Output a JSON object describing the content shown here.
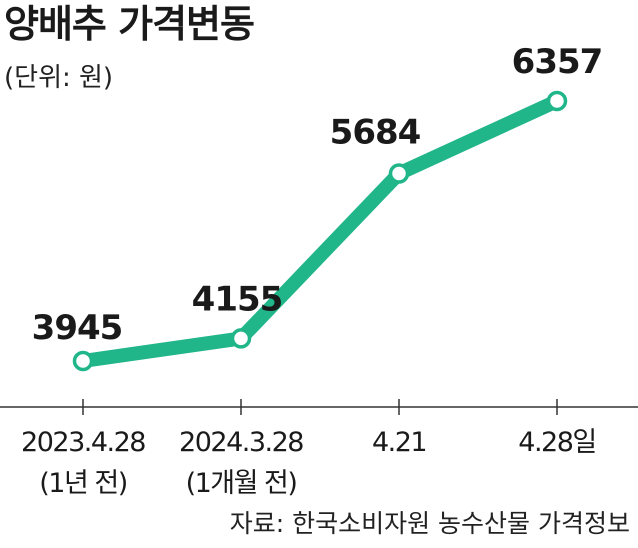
{
  "title": "양배추 가격변동",
  "unit": "(단위: 원)",
  "source": "자료: 한국소비자원 농수산물 가격정보",
  "colors": {
    "line": "#20b68a",
    "axis": "#333333",
    "text": "#1a1a1a"
  },
  "chart_data": {
    "type": "line",
    "title": "양배추 가격변동",
    "ylabel": "(단위: 원)",
    "xlabel": "",
    "categories": [
      [
        "2023.4.28",
        "(1년 전)"
      ],
      [
        "2024.3.28",
        "(1개월 전)"
      ],
      [
        "4.21",
        ""
      ],
      [
        "4.28일",
        ""
      ]
    ],
    "values": [
      3945,
      4155,
      5684,
      6357
    ],
    "data_labels": [
      "3945",
      "4155",
      "5684",
      "6357"
    ],
    "grid": false,
    "legend": "none"
  }
}
